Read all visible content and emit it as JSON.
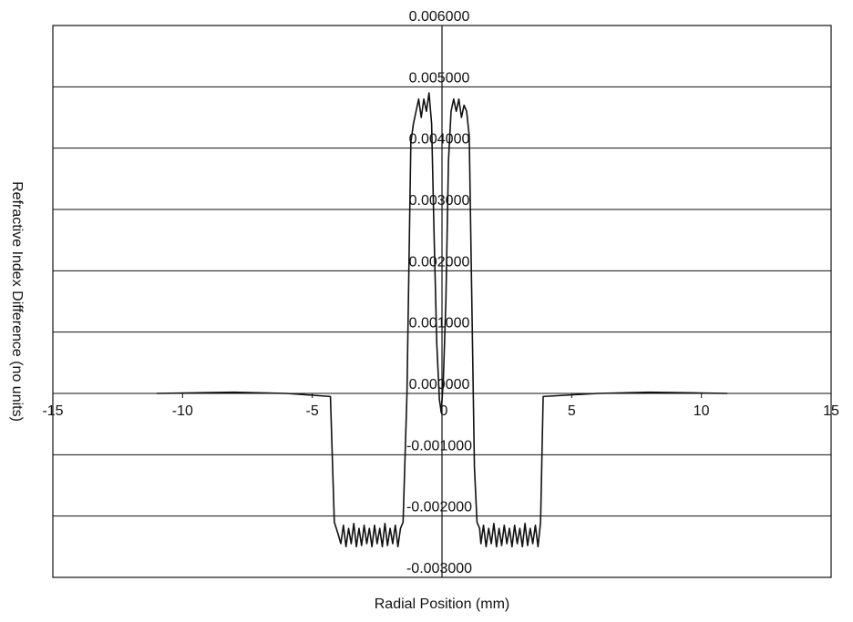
{
  "chart_data": {
    "type": "line",
    "x_label": "Radial Position (mm)",
    "y_label": "Refractive Index Difference (no units)",
    "xlim": [
      -15,
      15
    ],
    "xticks": [
      -15,
      -10,
      -5,
      0,
      5,
      10,
      15
    ],
    "ylim": [
      -0.003,
      0.006
    ],
    "yticks": [
      {
        "value": -0.003,
        "label": "-0.003000"
      },
      {
        "value": -0.002,
        "label": "-0.002000"
      },
      {
        "value": -0.001,
        "label": "-0.001000"
      },
      {
        "value": 0,
        "label": "0.000000"
      },
      {
        "value": 0.001,
        "label": "0.001000"
      },
      {
        "value": 0.002,
        "label": "0.002000"
      },
      {
        "value": 0.003,
        "label": "0.003000"
      },
      {
        "value": 0.004,
        "label": "0.004000"
      },
      {
        "value": 0.005,
        "label": "0.005000"
      },
      {
        "value": 0.006,
        "label": "0.006000"
      }
    ],
    "grid": true,
    "series": [
      {
        "color": "#111111",
        "x": [
          -11,
          -8,
          -6,
          -4.3,
          -4.15,
          -4.0,
          -3.9,
          -3.8,
          -3.7,
          -3.6,
          -3.5,
          -3.4,
          -3.3,
          -3.2,
          -3.1,
          -3.0,
          -2.9,
          -2.8,
          -2.7,
          -2.6,
          -2.5,
          -2.4,
          -2.3,
          -2.2,
          -2.1,
          -2.0,
          -1.9,
          -1.8,
          -1.7,
          -1.6,
          -1.5,
          -1.35,
          -1.2,
          -1.1,
          -1.0,
          -0.9,
          -0.8,
          -0.7,
          -0.6,
          -0.5,
          -0.4,
          -0.3,
          -0.2,
          -0.1,
          -0.03,
          0.05,
          0.15,
          0.25,
          0.35,
          0.45,
          0.55,
          0.65,
          0.75,
          0.85,
          0.95,
          1.05,
          1.15,
          1.25,
          1.35,
          1.45,
          1.5,
          1.6,
          1.7,
          1.8,
          1.9,
          2.0,
          2.1,
          2.2,
          2.3,
          2.4,
          2.5,
          2.6,
          2.7,
          2.8,
          2.9,
          3.0,
          3.1,
          3.2,
          3.3,
          3.4,
          3.5,
          3.6,
          3.7,
          3.8,
          3.9,
          6,
          8,
          11
        ],
        "values": [
          0,
          2e-05,
          0,
          -5e-05,
          -0.0021,
          -0.0023,
          -0.00245,
          -0.00215,
          -0.0025,
          -0.0022,
          -0.00245,
          -0.00212,
          -0.0025,
          -0.0022,
          -0.00248,
          -0.00215,
          -0.00245,
          -0.0022,
          -0.0025,
          -0.00215,
          -0.00245,
          -0.0022,
          -0.0025,
          -0.00212,
          -0.00248,
          -0.0022,
          -0.00245,
          -0.00215,
          -0.0025,
          -0.0022,
          -0.0021,
          0,
          0.0041,
          0.0044,
          0.0046,
          0.0048,
          0.0045,
          0.0048,
          0.0046,
          0.0049,
          0.0044,
          0.0025,
          0.0008,
          -0.0001,
          -0.0003,
          0.0002,
          0.0015,
          0.0038,
          0.0046,
          0.0048,
          0.0046,
          0.0048,
          0.0045,
          0.0047,
          0.0046,
          0.0042,
          0.0015,
          -0.0012,
          -0.0021,
          -0.0022,
          -0.00245,
          -0.00215,
          -0.0025,
          -0.0022,
          -0.00245,
          -0.00212,
          -0.0025,
          -0.0022,
          -0.00248,
          -0.00215,
          -0.00245,
          -0.0022,
          -0.0025,
          -0.00215,
          -0.00245,
          -0.0022,
          -0.0025,
          -0.00212,
          -0.00248,
          -0.0022,
          -0.00245,
          -0.00215,
          -0.0025,
          -0.0021,
          -5e-05,
          0,
          2e-05,
          0
        ]
      }
    ]
  }
}
